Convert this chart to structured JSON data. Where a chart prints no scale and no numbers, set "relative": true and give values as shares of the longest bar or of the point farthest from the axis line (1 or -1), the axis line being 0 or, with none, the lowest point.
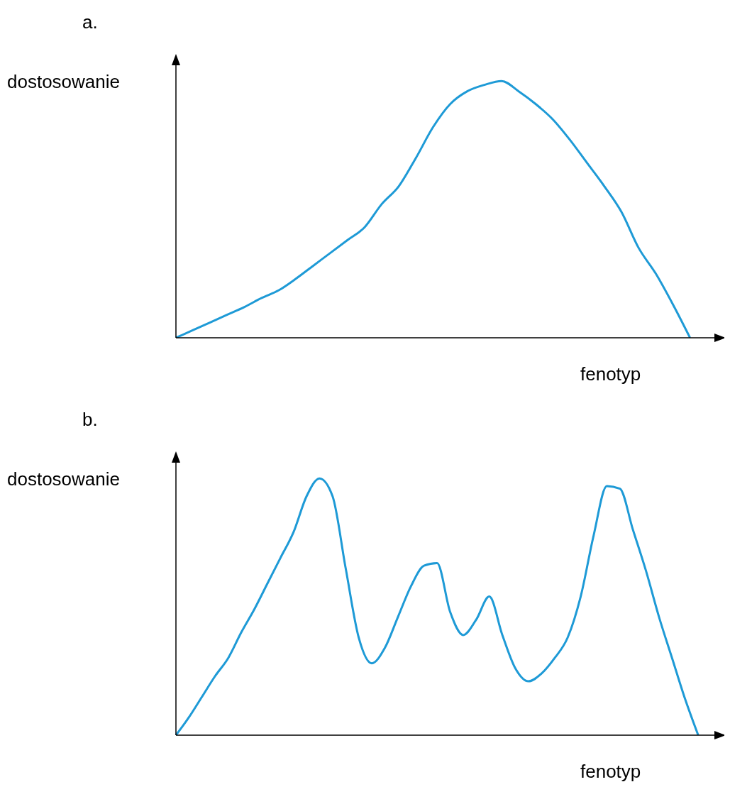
{
  "chart_data": [
    {
      "type": "line",
      "title": "a.",
      "xlabel": "fenotyp",
      "ylabel": "dostosowanie",
      "relative": true,
      "color": "#1e9ad6",
      "marker": "none",
      "categories": [
        null,
        null,
        null,
        null,
        null,
        null,
        null,
        null,
        null,
        null,
        null,
        null,
        null,
        null,
        null,
        null,
        null,
        null,
        null,
        null,
        null,
        null,
        null,
        null,
        null,
        null,
        null,
        null,
        null,
        null,
        null,
        null,
        null
      ],
      "values": [
        0,
        0.03,
        0.06,
        0.09,
        0.12,
        0.155,
        0.185,
        0.23,
        0.28,
        0.33,
        0.38,
        0.43,
        0.52,
        0.59,
        0.7,
        0.82,
        0.91,
        0.96,
        0.985,
        1,
        0.96,
        0.91,
        0.85,
        0.77,
        0.68,
        0.59,
        0.49,
        0.35,
        0.25,
        0.13,
        0,
        null,
        null
      ]
    },
    {
      "type": "line",
      "title": "b.",
      "xlabel": "fenotyp",
      "ylabel": "dostosowanie",
      "relative": true,
      "color": "#1e9ad6",
      "marker": "none",
      "categories": [
        null,
        null,
        null,
        null,
        null,
        null,
        null,
        null,
        null,
        null,
        null,
        null,
        null,
        null,
        null,
        null,
        null,
        null,
        null,
        null,
        null,
        null,
        null,
        null,
        null,
        null,
        null,
        null,
        null,
        null,
        null,
        null,
        null,
        null,
        null,
        null,
        null,
        null,
        null,
        null,
        null,
        null,
        null
      ],
      "values": [
        0,
        0.07,
        0.15,
        0.23,
        0.3,
        0.4,
        0.49,
        0.59,
        0.69,
        0.79,
        0.93,
        1,
        0.93,
        0.65,
        0.38,
        0.28,
        0.34,
        0.46,
        0.58,
        0.66,
        0.67,
        0.48,
        0.39,
        0.45,
        0.54,
        0.39,
        0.26,
        0.21,
        0.24,
        0.3,
        0.38,
        0.54,
        0.78,
        0.97,
        0.96,
        0.8,
        0.64,
        0.46,
        0.3,
        0.14,
        0,
        null,
        null
      ]
    }
  ]
}
